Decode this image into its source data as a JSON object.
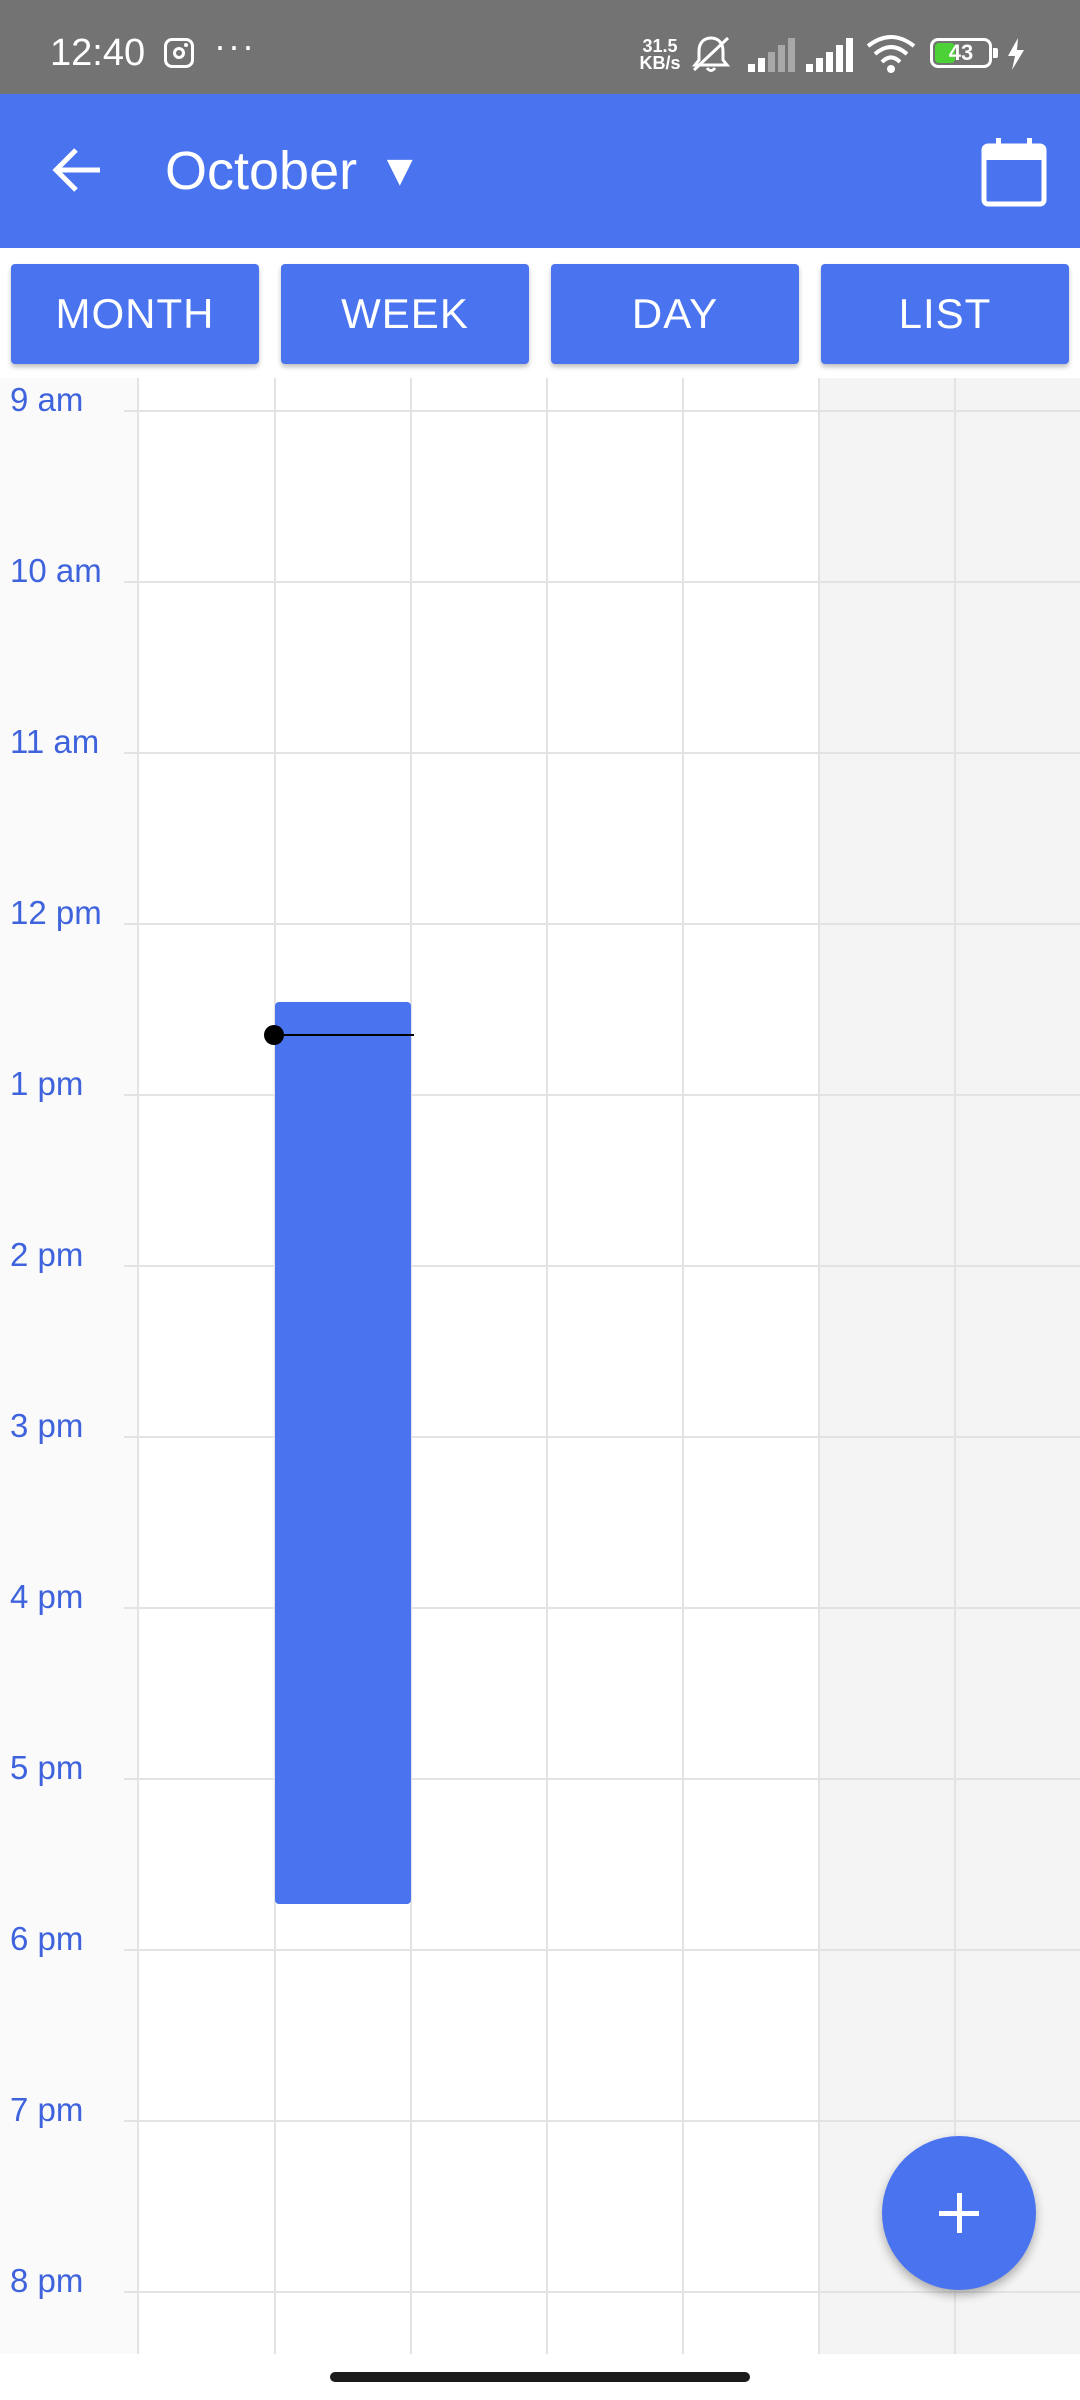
{
  "status_bar": {
    "time": "12:40",
    "net_speed_value": "31.5",
    "net_speed_unit": "KB/s",
    "battery_level": "43",
    "battery_fraction": 0.43,
    "icons": [
      "instagram-icon",
      "more-icon",
      "mute-icon",
      "signal-icon",
      "signal-icon",
      "wifi-icon",
      "battery-icon",
      "charging-icon"
    ]
  },
  "header": {
    "title": "October",
    "dropdown_glyph": "▼",
    "back_icon": "arrow-left-icon",
    "calendar_icon": "calendar-icon"
  },
  "view_tabs": [
    {
      "label": "MONTH"
    },
    {
      "label": "WEEK"
    },
    {
      "label": "DAY"
    },
    {
      "label": "LIST"
    }
  ],
  "time_grid": {
    "hours": [
      "9 am",
      "10 am",
      "11 am",
      "12 pm",
      "1 pm",
      "2 pm",
      "3 pm",
      "4 pm",
      "5 pm",
      "6 pm",
      "7 pm",
      "8 pm"
    ],
    "event": {
      "column": 2,
      "color": "#4a73f0"
    }
  },
  "fab": {
    "icon": "plus-icon"
  },
  "colors": {
    "primary": "#4a73f0",
    "status_bar": "#737373",
    "hour_label": "#3e63dd"
  }
}
